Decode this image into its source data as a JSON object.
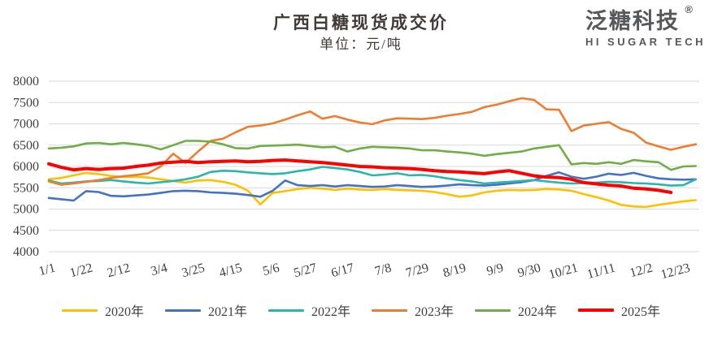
{
  "header": {
    "title": "广西白糖现货成交价",
    "subtitle": "单位：元/吨"
  },
  "logo": {
    "cn": "泛糖科技",
    "reg": "®",
    "en": "HI SUGAR TECH"
  },
  "chart_data": {
    "type": "line",
    "title": "广西白糖现货成交价",
    "unit_label": "单位：元/吨",
    "ylabel": "",
    "xlabel": "",
    "ylim": [
      4000,
      8000
    ],
    "yticks": [
      8000,
      7500,
      7000,
      6500,
      6000,
      5500,
      5000,
      4500,
      4000
    ],
    "grid": "horizontal",
    "grid_color": "#d9d9d9",
    "text_color": "#404040",
    "legend_position": "bottom",
    "x_total_days": 365,
    "xtick_labels": [
      "1/1",
      "1/22",
      "2/12",
      "3/4",
      "3/25",
      "4/15",
      "5/6",
      "5/27",
      "6/17",
      "7/8",
      "7/29",
      "8/19",
      "9/9",
      "9/30",
      "10/21",
      "11/11",
      "12/2",
      "12/23"
    ],
    "xtick_days": [
      0,
      21,
      42,
      63,
      84,
      105,
      126,
      147,
      168,
      189,
      210,
      231,
      252,
      273,
      294,
      315,
      336,
      357
    ],
    "sample_step_days": 7,
    "series": [
      {
        "name": "2020年",
        "color": "#FFC000",
        "width": 2.6,
        "values": [
          5700,
          5730,
          5790,
          5850,
          5820,
          5780,
          5750,
          5760,
          5740,
          5700,
          5660,
          5620,
          5670,
          5680,
          5640,
          5570,
          5430,
          5110,
          5380,
          5420,
          5470,
          5500,
          5480,
          5450,
          5480,
          5460,
          5450,
          5470,
          5450,
          5440,
          5430,
          5400,
          5350,
          5290,
          5320,
          5390,
          5430,
          5450,
          5440,
          5450,
          5470,
          5460,
          5430,
          5350,
          5280,
          5200,
          5100,
          5060,
          5050,
          5100,
          5140,
          5180,
          5210
        ]
      },
      {
        "name": "2021年",
        "color": "#4472C4",
        "width": 2.6,
        "values": [
          5260,
          5230,
          5200,
          5420,
          5400,
          5310,
          5300,
          5320,
          5340,
          5380,
          5420,
          5430,
          5420,
          5390,
          5380,
          5360,
          5330,
          5290,
          5430,
          5670,
          5560,
          5540,
          5560,
          5530,
          5560,
          5540,
          5520,
          5530,
          5560,
          5540,
          5520,
          5530,
          5550,
          5580,
          5560,
          5550,
          5570,
          5600,
          5630,
          5680,
          5780,
          5860,
          5760,
          5710,
          5760,
          5830,
          5800,
          5850,
          5780,
          5720,
          5700,
          5690,
          5700
        ]
      },
      {
        "name": "2022年",
        "color": "#2BB5AC",
        "width": 2.6,
        "values": [
          5670,
          5600,
          5620,
          5650,
          5660,
          5680,
          5650,
          5620,
          5600,
          5630,
          5660,
          5700,
          5760,
          5870,
          5900,
          5890,
          5860,
          5840,
          5820,
          5840,
          5890,
          5930,
          5990,
          5960,
          5930,
          5870,
          5790,
          5810,
          5840,
          5790,
          5800,
          5770,
          5720,
          5680,
          5650,
          5600,
          5620,
          5640,
          5660,
          5680,
          5650,
          5620,
          5600,
          5610,
          5620,
          5640,
          5630,
          5610,
          5600,
          5580,
          5550,
          5560,
          5700
        ]
      },
      {
        "name": "2023年",
        "color": "#ED7D31",
        "width": 2.6,
        "values": [
          5650,
          5570,
          5600,
          5640,
          5680,
          5730,
          5770,
          5800,
          5840,
          6000,
          6300,
          6080,
          6350,
          6600,
          6650,
          6800,
          6930,
          6960,
          7010,
          7100,
          7200,
          7290,
          7120,
          7180,
          7100,
          7030,
          6990,
          7080,
          7130,
          7120,
          7110,
          7140,
          7190,
          7230,
          7280,
          7390,
          7450,
          7530,
          7600,
          7560,
          7340,
          7330,
          6830,
          6960,
          7000,
          7040,
          6880,
          6790,
          6560,
          6470,
          6390,
          6460,
          6520
        ]
      },
      {
        "name": "2024年",
        "color": "#70AD47",
        "width": 2.6,
        "values": [
          6420,
          6440,
          6470,
          6540,
          6550,
          6520,
          6550,
          6520,
          6480,
          6400,
          6500,
          6600,
          6600,
          6580,
          6520,
          6430,
          6420,
          6480,
          6490,
          6500,
          6510,
          6480,
          6450,
          6460,
          6350,
          6420,
          6460,
          6450,
          6440,
          6420,
          6380,
          6380,
          6350,
          6330,
          6300,
          6250,
          6290,
          6320,
          6350,
          6420,
          6460,
          6500,
          6050,
          6080,
          6060,
          6100,
          6060,
          6150,
          6120,
          6100,
          5920,
          6000,
          6010
        ]
      },
      {
        "name": "2025年",
        "color": "#FF0000",
        "width": 4,
        "values": [
          6060,
          5980,
          5920,
          5950,
          5930,
          5950,
          5960,
          6000,
          6030,
          6080,
          6100,
          6120,
          6090,
          6110,
          6120,
          6130,
          6110,
          6120,
          6140,
          6150,
          6130,
          6110,
          6090,
          6060,
          6030,
          6000,
          5990,
          5970,
          5960,
          5950,
          5930,
          5900,
          5880,
          5870,
          5850,
          5830,
          5870,
          5900,
          5840,
          5780,
          5750,
          5740,
          5700,
          5620,
          5590,
          5560,
          5540,
          5490,
          5470,
          5440,
          5390,
          null,
          null
        ]
      }
    ]
  }
}
